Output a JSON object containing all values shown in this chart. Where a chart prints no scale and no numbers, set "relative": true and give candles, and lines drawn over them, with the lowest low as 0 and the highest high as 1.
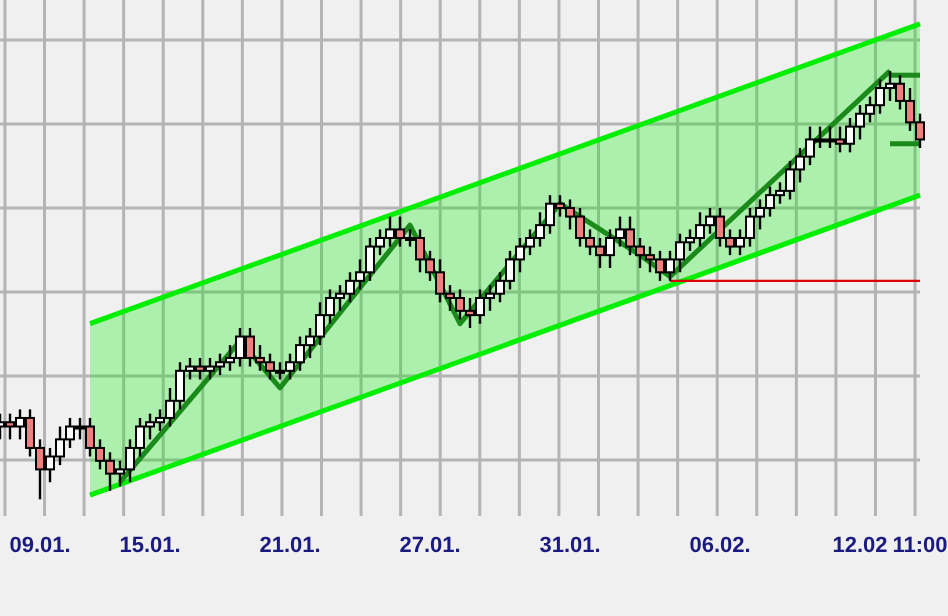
{
  "chart_data": {
    "type": "candlestick",
    "relative": true,
    "grid": true,
    "categories": [
      null,
      null,
      null,
      null,
      "09.01.",
      null,
      null,
      null,
      null,
      null,
      null,
      null,
      null,
      null,
      null,
      "15.01.",
      null,
      null,
      null,
      null,
      null,
      null,
      null,
      null,
      null,
      null,
      null,
      null,
      null,
      "21.01.",
      null,
      null,
      null,
      null,
      null,
      null,
      null,
      null,
      null,
      null,
      null,
      null,
      null,
      "27.01.",
      null,
      null,
      null,
      null,
      null,
      null,
      null,
      null,
      null,
      null,
      null,
      null,
      null,
      "31.01.",
      null,
      null,
      null,
      null,
      null,
      null,
      null,
      null,
      null,
      null,
      null,
      null,
      null,
      null,
      "06.02.",
      null,
      null,
      null,
      null,
      null,
      null,
      null,
      null,
      null,
      null,
      null,
      null,
      null,
      "12.02",
      null,
      null,
      null,
      null,
      null,
      "11:00"
    ],
    "ohlc": [
      [
        0.17,
        0.2,
        0.14,
        0.18
      ],
      [
        0.18,
        0.2,
        0.14,
        0.17
      ],
      [
        0.17,
        0.21,
        0.14,
        0.19
      ],
      [
        0.19,
        0.21,
        0.1,
        0.12
      ],
      [
        0.12,
        0.14,
        0.0,
        0.07
      ],
      [
        0.07,
        0.12,
        0.04,
        0.1
      ],
      [
        0.1,
        0.17,
        0.08,
        0.14
      ],
      [
        0.14,
        0.19,
        0.12,
        0.17
      ],
      [
        0.17,
        0.19,
        0.14,
        0.17
      ],
      [
        0.17,
        0.19,
        0.1,
        0.12
      ],
      [
        0.12,
        0.14,
        0.07,
        0.09
      ],
      [
        0.09,
        0.11,
        0.02,
        0.06
      ],
      [
        0.06,
        0.09,
        0.03,
        0.07
      ],
      [
        0.07,
        0.14,
        0.04,
        0.12
      ],
      [
        0.12,
        0.19,
        0.1,
        0.17
      ],
      [
        0.17,
        0.2,
        0.14,
        0.18
      ],
      [
        0.18,
        0.21,
        0.16,
        0.19
      ],
      [
        0.19,
        0.26,
        0.17,
        0.23
      ],
      [
        0.23,
        0.32,
        0.21,
        0.3
      ],
      [
        0.3,
        0.33,
        0.28,
        0.31
      ],
      [
        0.31,
        0.33,
        0.28,
        0.3
      ],
      [
        0.3,
        0.33,
        0.28,
        0.31
      ],
      [
        0.31,
        0.34,
        0.29,
        0.32
      ],
      [
        0.32,
        0.36,
        0.3,
        0.33
      ],
      [
        0.33,
        0.4,
        0.31,
        0.38
      ],
      [
        0.38,
        0.4,
        0.31,
        0.33
      ],
      [
        0.33,
        0.36,
        0.3,
        0.32
      ],
      [
        0.32,
        0.34,
        0.28,
        0.3
      ],
      [
        0.3,
        0.32,
        0.28,
        0.3
      ],
      [
        0.3,
        0.34,
        0.28,
        0.32
      ],
      [
        0.32,
        0.38,
        0.3,
        0.36
      ],
      [
        0.36,
        0.4,
        0.33,
        0.38
      ],
      [
        0.38,
        0.46,
        0.36,
        0.43
      ],
      [
        0.43,
        0.49,
        0.41,
        0.47
      ],
      [
        0.47,
        0.5,
        0.44,
        0.48
      ],
      [
        0.48,
        0.53,
        0.46,
        0.51
      ],
      [
        0.51,
        0.56,
        0.49,
        0.53
      ],
      [
        0.53,
        0.61,
        0.51,
        0.59
      ],
      [
        0.59,
        0.63,
        0.57,
        0.61
      ],
      [
        0.61,
        0.66,
        0.59,
        0.63
      ],
      [
        0.63,
        0.66,
        0.59,
        0.61
      ],
      [
        0.61,
        0.63,
        0.59,
        0.61
      ],
      [
        0.61,
        0.63,
        0.53,
        0.56
      ],
      [
        0.56,
        0.58,
        0.51,
        0.53
      ],
      [
        0.53,
        0.56,
        0.46,
        0.48
      ],
      [
        0.48,
        0.5,
        0.44,
        0.47
      ],
      [
        0.47,
        0.49,
        0.42,
        0.44
      ],
      [
        0.44,
        0.47,
        0.4,
        0.43
      ],
      [
        0.43,
        0.49,
        0.41,
        0.47
      ],
      [
        0.47,
        0.5,
        0.44,
        0.48
      ],
      [
        0.48,
        0.53,
        0.46,
        0.51
      ],
      [
        0.51,
        0.58,
        0.49,
        0.56
      ],
      [
        0.56,
        0.61,
        0.53,
        0.59
      ],
      [
        0.59,
        0.63,
        0.57,
        0.61
      ],
      [
        0.61,
        0.67,
        0.59,
        0.64
      ],
      [
        0.64,
        0.71,
        0.62,
        0.69
      ],
      [
        0.69,
        0.71,
        0.66,
        0.68
      ],
      [
        0.68,
        0.7,
        0.63,
        0.66
      ],
      [
        0.66,
        0.68,
        0.59,
        0.61
      ],
      [
        0.61,
        0.63,
        0.57,
        0.59
      ],
      [
        0.59,
        0.61,
        0.54,
        0.57
      ],
      [
        0.57,
        0.63,
        0.54,
        0.61
      ],
      [
        0.61,
        0.66,
        0.59,
        0.63
      ],
      [
        0.63,
        0.66,
        0.57,
        0.59
      ],
      [
        0.59,
        0.61,
        0.54,
        0.57
      ],
      [
        0.57,
        0.59,
        0.53,
        0.56
      ],
      [
        0.56,
        0.58,
        0.51,
        0.53
      ],
      [
        0.53,
        0.58,
        0.51,
        0.56
      ],
      [
        0.56,
        0.62,
        0.53,
        0.6
      ],
      [
        0.6,
        0.63,
        0.58,
        0.61
      ],
      [
        0.61,
        0.67,
        0.59,
        0.64
      ],
      [
        0.64,
        0.68,
        0.62,
        0.66
      ],
      [
        0.66,
        0.68,
        0.59,
        0.61
      ],
      [
        0.61,
        0.63,
        0.57,
        0.59
      ],
      [
        0.59,
        0.63,
        0.57,
        0.61
      ],
      [
        0.61,
        0.68,
        0.59,
        0.66
      ],
      [
        0.66,
        0.7,
        0.63,
        0.68
      ],
      [
        0.68,
        0.73,
        0.66,
        0.71
      ],
      [
        0.71,
        0.74,
        0.69,
        0.72
      ],
      [
        0.72,
        0.79,
        0.7,
        0.77
      ],
      [
        0.77,
        0.82,
        0.74,
        0.8
      ],
      [
        0.8,
        0.87,
        0.78,
        0.84
      ],
      [
        0.84,
        0.87,
        0.82,
        0.84
      ],
      [
        0.84,
        0.87,
        0.82,
        0.84
      ],
      [
        0.84,
        0.87,
        0.81,
        0.83
      ],
      [
        0.83,
        0.89,
        0.81,
        0.87
      ],
      [
        0.87,
        0.92,
        0.84,
        0.9
      ],
      [
        0.9,
        0.94,
        0.88,
        0.92
      ],
      [
        0.92,
        0.98,
        0.9,
        0.96
      ],
      [
        0.96,
        1.0,
        0.93,
        0.97
      ],
      [
        0.97,
        0.99,
        0.91,
        0.93
      ],
      [
        0.93,
        0.96,
        0.86,
        0.88
      ],
      [
        0.88,
        0.9,
        0.82,
        0.84
      ]
    ],
    "series": [
      {
        "type": "line",
        "color": "#00ee00",
        "values": [
          null,
          null,
          null,
          null,
          null,
          null,
          null,
          null,
          null,
          0.41,
          null,
          null,
          null,
          null,
          null,
          null,
          null,
          null,
          null,
          null,
          null,
          null,
          null,
          null,
          null,
          null,
          null,
          null,
          null,
          null,
          null,
          null,
          null,
          null,
          null,
          null,
          null,
          null,
          null,
          null,
          null,
          null,
          null,
          null,
          null,
          null,
          null,
          null,
          null,
          null,
          null,
          null,
          null,
          null,
          null,
          null,
          null,
          null,
          null,
          null,
          null,
          null,
          null,
          null,
          null,
          null,
          null,
          null,
          null,
          null,
          null,
          null,
          null,
          null,
          null,
          null,
          null,
          null,
          null,
          null,
          null,
          null,
          null,
          null,
          null,
          null,
          null,
          null,
          null,
          null,
          null,
          null,
          1.11
        ]
      },
      {
        "type": "line",
        "color": "#00ee00",
        "values": [
          null,
          null,
          null,
          null,
          null,
          null,
          null,
          null,
          null,
          0.01,
          null,
          null,
          null,
          null,
          null,
          null,
          null,
          null,
          null,
          null,
          null,
          null,
          null,
          null,
          null,
          null,
          null,
          null,
          null,
          null,
          null,
          null,
          null,
          null,
          null,
          null,
          null,
          null,
          null,
          null,
          null,
          null,
          null,
          null,
          null,
          null,
          null,
          null,
          null,
          null,
          null,
          null,
          null,
          null,
          null,
          null,
          null,
          null,
          null,
          null,
          null,
          null,
          null,
          null,
          null,
          null,
          null,
          null,
          null,
          null,
          null,
          null,
          null,
          null,
          null,
          null,
          null,
          null,
          null,
          null,
          null,
          null,
          null,
          null,
          null,
          null,
          null,
          null,
          null,
          null,
          null,
          null,
          0.71
        ],
        "lower": [
          null,
          null,
          null,
          null,
          null,
          null,
          null,
          null,
          null,
          0.01,
          null,
          null,
          null,
          null,
          null,
          null,
          null,
          null,
          null,
          null,
          null,
          null,
          null,
          null,
          null,
          null,
          null,
          null,
          null,
          null,
          null,
          null,
          null,
          null,
          null,
          null,
          null,
          null,
          null,
          null,
          null,
          null,
          null,
          null,
          null,
          null,
          null,
          null,
          null,
          null,
          null,
          null,
          null,
          null,
          null,
          null,
          null,
          null,
          null,
          null,
          null,
          null,
          null,
          null,
          null,
          null,
          null,
          null,
          null,
          null,
          null,
          null,
          null,
          null,
          null,
          null,
          null,
          null,
          null,
          null,
          null,
          null,
          null,
          null,
          null,
          null,
          null,
          null,
          null,
          null,
          null,
          null,
          0.71
        ],
        "upper": [
          null,
          null,
          null,
          null,
          null,
          null,
          null,
          null,
          null,
          0.41,
          null,
          null,
          null,
          null,
          null,
          null,
          null,
          null,
          null,
          null,
          null,
          null,
          null,
          null,
          null,
          null,
          null,
          null,
          null,
          null,
          null,
          null,
          null,
          null,
          null,
          null,
          null,
          null,
          null,
          null,
          null,
          null,
          null,
          null,
          null,
          null,
          null,
          null,
          null,
          null,
          null,
          null,
          null,
          null,
          null,
          null,
          null,
          null,
          null,
          null,
          null,
          null,
          null,
          null,
          null,
          null,
          null,
          null,
          null,
          null,
          null,
          null,
          null,
          null,
          null,
          null,
          null,
          null,
          null,
          null,
          null,
          null,
          null,
          null,
          null,
          null,
          null,
          null,
          null,
          null,
          null,
          null,
          1.11
        ]
      },
      {
        "type": "line",
        "color": "#1a8a1a",
        "values": [
          null,
          null,
          null,
          null,
          null,
          null,
          null,
          null,
          null,
          null,
          null,
          null,
          0.04,
          null,
          null,
          null,
          null,
          null,
          null,
          null,
          null,
          null,
          null,
          null,
          0.37,
          null,
          null,
          null,
          0.26,
          null,
          null,
          null,
          null,
          null,
          null,
          null,
          null,
          null,
          null,
          null,
          null,
          0.64,
          null,
          null,
          null,
          null,
          0.41,
          null,
          null,
          null,
          null,
          null,
          null,
          null,
          null,
          null,
          0.69,
          null,
          null,
          null,
          null,
          null,
          null,
          null,
          0.57,
          null,
          null,
          0.52,
          null,
          null,
          null,
          null,
          null,
          null,
          null,
          null,
          null,
          null,
          null,
          null,
          null,
          null,
          null,
          null,
          null,
          null,
          null,
          null,
          null,
          1.0,
          null,
          null,
          null
        ]
      },
      {
        "type": "line",
        "color": "#dd0000",
        "values": [
          null,
          null,
          null,
          null,
          null,
          null,
          null,
          null,
          null,
          null,
          null,
          null,
          null,
          null,
          null,
          null,
          null,
          null,
          null,
          null,
          null,
          null,
          null,
          null,
          null,
          null,
          null,
          null,
          null,
          null,
          null,
          null,
          null,
          null,
          null,
          null,
          null,
          null,
          null,
          null,
          null,
          null,
          null,
          null,
          null,
          null,
          null,
          null,
          null,
          null,
          null,
          null,
          null,
          null,
          null,
          null,
          null,
          null,
          null,
          null,
          null,
          null,
          null,
          null,
          null,
          null,
          null,
          0.51,
          null,
          null,
          null,
          null,
          null,
          null,
          null,
          null,
          null,
          null,
          null,
          null,
          null,
          null,
          null,
          null,
          null,
          null,
          null,
          null,
          null,
          null,
          null,
          null,
          0.51
        ]
      },
      {
        "type": "line",
        "color": "#1a8a1a",
        "values": [
          null,
          null,
          null,
          null,
          null,
          null,
          null,
          null,
          null,
          null,
          null,
          null,
          null,
          null,
          null,
          null,
          null,
          null,
          null,
          null,
          null,
          null,
          null,
          null,
          null,
          null,
          null,
          null,
          null,
          null,
          null,
          null,
          null,
          null,
          null,
          null,
          null,
          null,
          null,
          null,
          null,
          null,
          null,
          null,
          null,
          null,
          null,
          null,
          null,
          null,
          null,
          null,
          null,
          null,
          null,
          null,
          null,
          null,
          null,
          null,
          null,
          null,
          null,
          null,
          null,
          null,
          null,
          null,
          null,
          null,
          null,
          null,
          null,
          null,
          null,
          null,
          null,
          null,
          null,
          null,
          null,
          null,
          null,
          null,
          null,
          null,
          null,
          null,
          null,
          0.99,
          null,
          null,
          0.99
        ]
      },
      {
        "type": "line",
        "color": "#1a8a1a",
        "values": [
          null,
          null,
          null,
          null,
          null,
          null,
          null,
          null,
          null,
          null,
          null,
          null,
          null,
          null,
          null,
          null,
          null,
          null,
          null,
          null,
          null,
          null,
          null,
          null,
          null,
          null,
          null,
          null,
          null,
          null,
          null,
          null,
          null,
          null,
          null,
          null,
          null,
          null,
          null,
          null,
          null,
          null,
          null,
          null,
          null,
          null,
          null,
          null,
          null,
          null,
          null,
          null,
          null,
          null,
          null,
          null,
          null,
          null,
          null,
          null,
          null,
          null,
          null,
          null,
          null,
          null,
          null,
          null,
          null,
          null,
          null,
          null,
          null,
          null,
          null,
          null,
          null,
          null,
          null,
          null,
          null,
          null,
          null,
          null,
          null,
          null,
          null,
          null,
          null,
          0.83,
          null,
          null,
          0.83
        ]
      }
    ]
  }
}
